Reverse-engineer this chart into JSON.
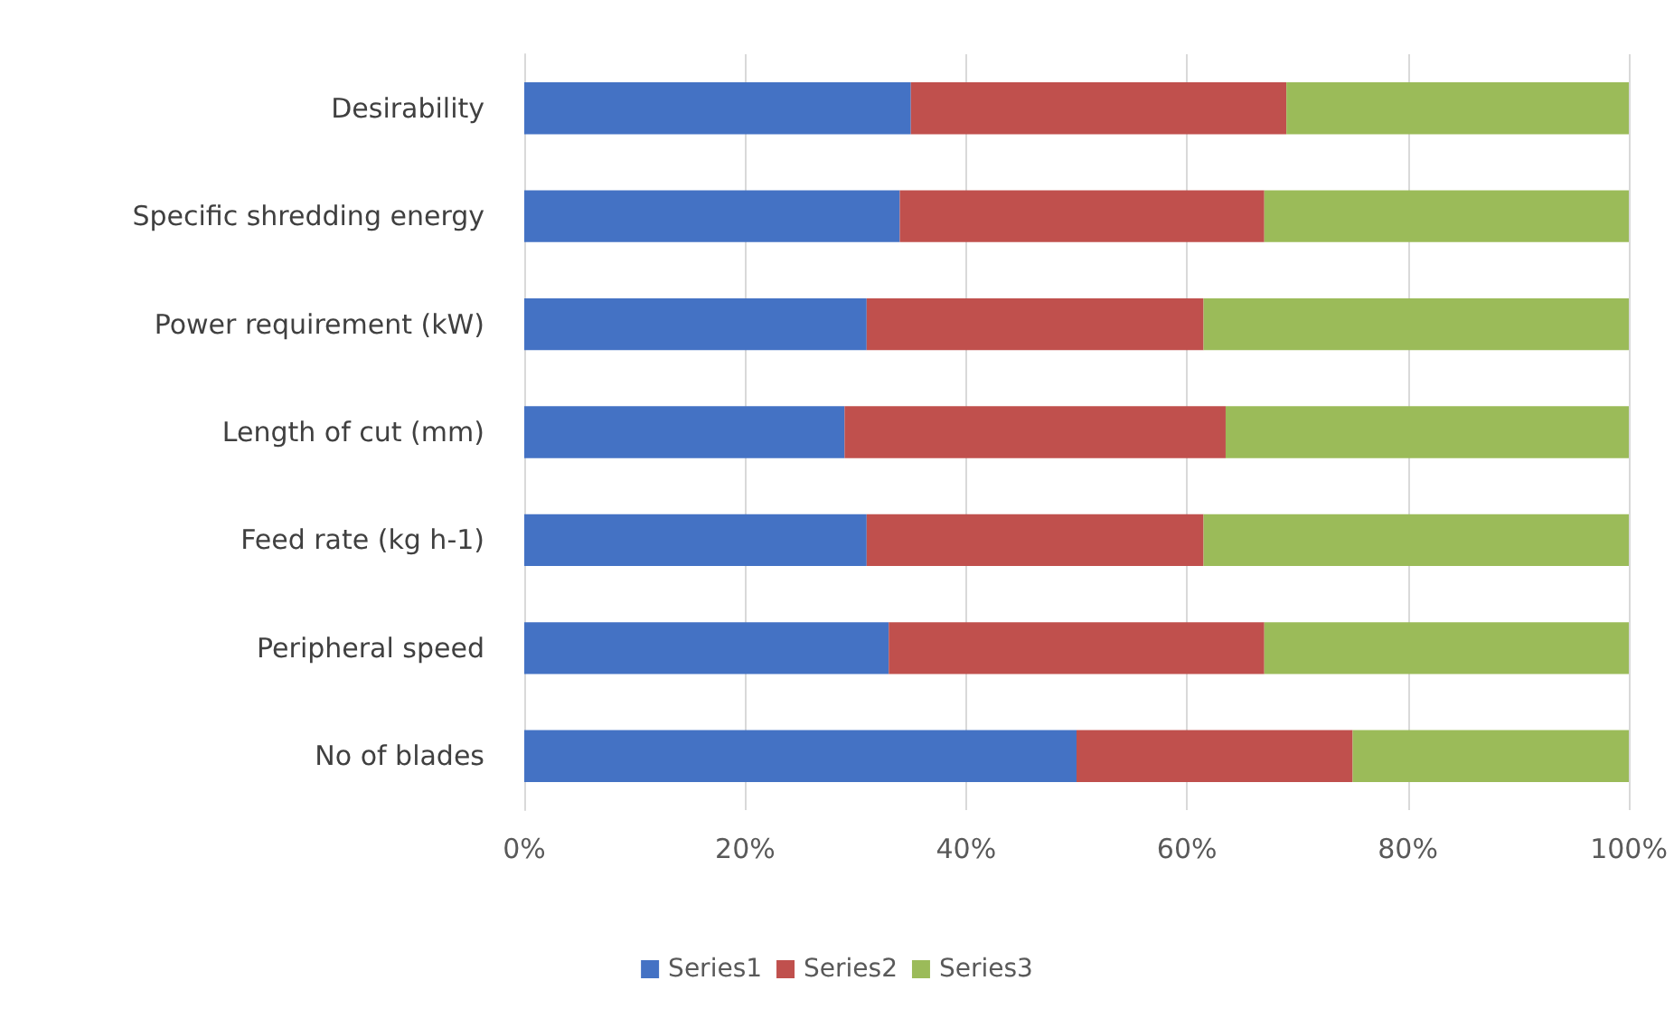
{
  "chart_data": {
    "type": "bar",
    "orientation": "horizontal",
    "stacked": true,
    "categories": [
      "Desirability",
      "Specific shredding energy",
      "Power requirement (kW)",
      "Length of cut (mm)",
      "Feed rate (kg h-1)",
      "Peripheral speed",
      "No of blades"
    ],
    "series": [
      {
        "name": "Series1",
        "color": "#4472c4",
        "values": [
          35,
          34,
          31,
          29,
          31,
          33,
          50
        ]
      },
      {
        "name": "Series2",
        "color": "#c0504d",
        "values": [
          34,
          33,
          30.5,
          34.5,
          30.5,
          34,
          25
        ]
      },
      {
        "name": "Series3",
        "color": "#9bbb59",
        "values": [
          31,
          33,
          38.5,
          36.5,
          38.5,
          33,
          25
        ]
      }
    ],
    "xlim": [
      0,
      100
    ],
    "xticks": [
      {
        "value": 0,
        "label": "0%"
      },
      {
        "value": 20,
        "label": "20%"
      },
      {
        "value": 40,
        "label": "40%"
      },
      {
        "value": 60,
        "label": "60%"
      },
      {
        "value": 80,
        "label": "80%"
      },
      {
        "value": 100,
        "label": "100%"
      }
    ],
    "grid": "x",
    "legend": "bottom"
  }
}
